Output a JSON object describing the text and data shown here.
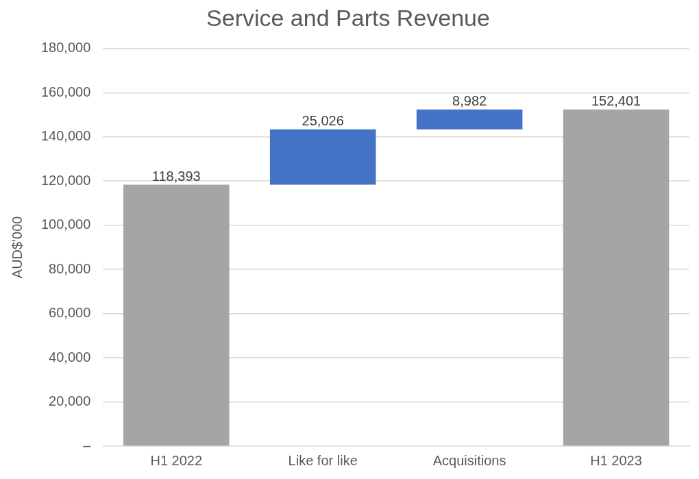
{
  "chart_data": {
    "type": "bar",
    "title": "Service and Parts Revenue",
    "ylabel": "AUD$'000",
    "categories": [
      "H1 2022",
      "Like for like",
      "Acquisitions",
      "H1 2023"
    ],
    "values": [
      118393,
      25026,
      8982,
      152401
    ],
    "base": [
      0,
      118393,
      143419,
      0
    ],
    "colors": [
      "#a5a5a5",
      "#4472c4",
      "#4472c4",
      "#a5a5a5"
    ],
    "ylim": [
      0,
      180000
    ],
    "yticks": [
      {
        "value": 0,
        "label": "–"
      },
      {
        "value": 20000,
        "label": "20,000"
      },
      {
        "value": 40000,
        "label": "40,000"
      },
      {
        "value": 60000,
        "label": "60,000"
      },
      {
        "value": 80000,
        "label": "80,000"
      },
      {
        "value": 100000,
        "label": "100,000"
      },
      {
        "value": 120000,
        "label": "120,000"
      },
      {
        "value": 140000,
        "label": "140,000"
      },
      {
        "value": 160000,
        "label": "160,000"
      },
      {
        "value": 180000,
        "label": "180,000"
      }
    ],
    "value_labels": [
      "118,393",
      "25,026",
      "8,982",
      "152,401"
    ],
    "grid": "y",
    "legend": false
  }
}
